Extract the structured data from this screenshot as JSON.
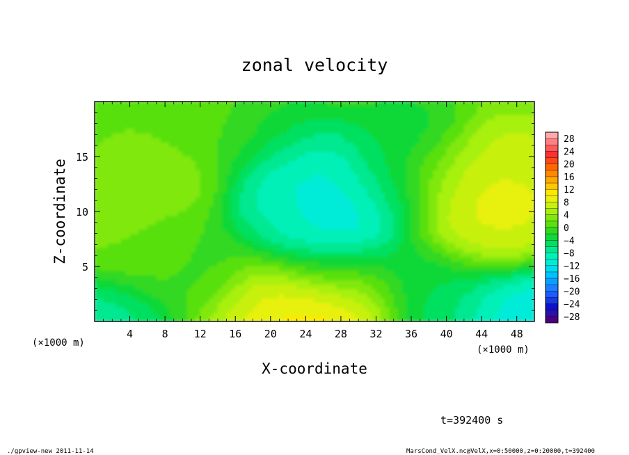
{
  "chart_data": {
    "type": "heatmap",
    "title": "zonal velocity",
    "xlabel": "X-coordinate",
    "ylabel": "Z-coordinate",
    "x_unit": "(×1000 m)",
    "y_unit": "(×1000 m)",
    "xlim": [
      0,
      50
    ],
    "ylim": [
      0,
      20
    ],
    "x_ticks": [
      4,
      8,
      12,
      16,
      20,
      24,
      28,
      32,
      36,
      40,
      44,
      48
    ],
    "y_ticks": [
      5,
      10,
      15
    ],
    "x_tick_labels": [
      "4",
      "8",
      "12",
      "16",
      "20",
      "24",
      "28",
      "32",
      "36",
      "40",
      "44",
      "48"
    ],
    "y_tick_labels": [
      "5",
      "10",
      "15"
    ],
    "colorbar": {
      "levels": [
        -30,
        -28,
        -26,
        -24,
        -22,
        -20,
        -18,
        -16,
        -14,
        -12,
        -10,
        -8,
        -6,
        -4,
        -2,
        0,
        2,
        4,
        6,
        8,
        10,
        12,
        14,
        16,
        18,
        20,
        22,
        24,
        26,
        28,
        30
      ],
      "tick_labels": [
        "28",
        "24",
        "20",
        "16",
        "12",
        "8",
        "4",
        "0",
        "−4",
        "−8",
        "−12",
        "−16",
        "−20",
        "−24",
        "−28"
      ],
      "tick_values": [
        28,
        24,
        20,
        16,
        12,
        8,
        4,
        0,
        -4,
        -8,
        -12,
        -16,
        -20,
        -24,
        -28
      ],
      "colors": [
        "#4b0082",
        "#2a0fa8",
        "#1010c8",
        "#1838e0",
        "#1a5cff",
        "#1a80ff",
        "#0aa0ff",
        "#00c0ff",
        "#00dcf0",
        "#00ecd8",
        "#00f0b8",
        "#00e890",
        "#00e060",
        "#10d838",
        "#30d820",
        "#58e010",
        "#80e810",
        "#a8f010",
        "#c8f010",
        "#e8f010",
        "#ffe800",
        "#ffc800",
        "#ffa800",
        "#ff8800",
        "#ff6800",
        "#ff4818",
        "#ff3030",
        "#ff5a5a",
        "#ff8080",
        "#ffaaaa"
      ]
    },
    "field_features": [
      {
        "x": 25,
        "z": 12,
        "value": -13
      },
      {
        "x": 28,
        "z": 9,
        "value": -14
      },
      {
        "x": 24,
        "z": 14,
        "value": -10
      },
      {
        "x": 27,
        "z": 5,
        "value": -7
      },
      {
        "x": 22,
        "z": 10,
        "value": -8
      },
      {
        "x": 33,
        "z": 12,
        "value": -6
      },
      {
        "x": 35,
        "z": 16,
        "value": -4
      },
      {
        "x": 20,
        "z": 17,
        "value": -3
      },
      {
        "x": 24,
        "z": 0.3,
        "value": 14
      },
      {
        "x": 28,
        "z": 2.5,
        "value": 10
      },
      {
        "x": 20,
        "z": 1.5,
        "value": 8
      },
      {
        "x": 45,
        "z": 11.5,
        "value": 11
      },
      {
        "x": 44,
        "z": 8,
        "value": 8
      },
      {
        "x": 48,
        "z": 14,
        "value": 7
      },
      {
        "x": 40,
        "z": 13,
        "value": 5
      },
      {
        "x": 8,
        "z": 13,
        "value": 3
      },
      {
        "x": 6,
        "z": 6,
        "value": 1
      },
      {
        "x": 12,
        "z": 5,
        "value": -1
      },
      {
        "x": 1,
        "z": 0.6,
        "value": -8
      },
      {
        "x": 47,
        "z": 0.8,
        "value": -14
      },
      {
        "x": 41,
        "z": 1.5,
        "value": -5
      },
      {
        "x": 37,
        "z": 4,
        "value": -4
      },
      {
        "x": 3,
        "z": 8,
        "value": 3
      },
      {
        "x": 14,
        "z": 18,
        "value": 1
      }
    ],
    "grid": false,
    "legend": "colorbar-right"
  },
  "time_label": "t=392400 s",
  "footer_left": "./gpview-new  2011-11-14",
  "footer_right": "MarsCond_VelX.nc@VelX,x=0:50000,z=0:20000,t=392400"
}
